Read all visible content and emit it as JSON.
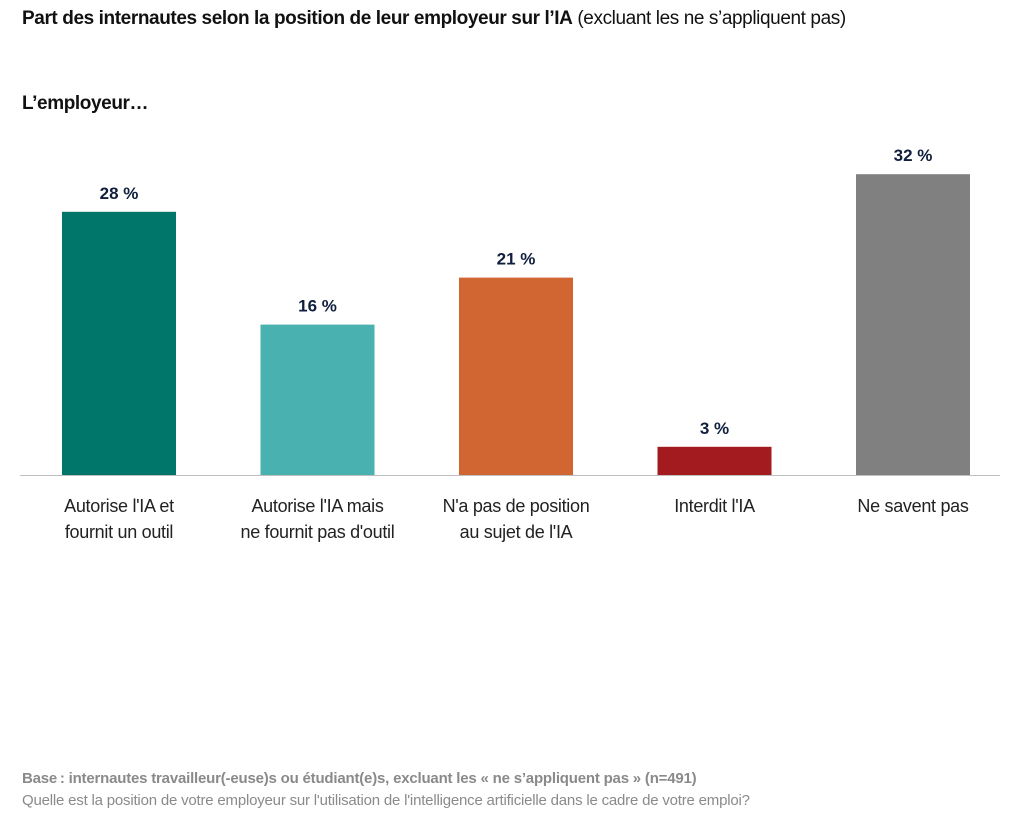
{
  "chart_data": {
    "type": "bar",
    "title": "Part des internautes selon la position de leur employeur sur l’IA",
    "title_note": "(excluant les ne s’appliquent pas)",
    "subtitle": "L’employeur…",
    "categories": [
      [
        "Autorise l'IA et",
        "fournit un outil"
      ],
      [
        "Autorise l'IA mais",
        "ne fournit pas d'outil"
      ],
      [
        "N'a pas de position",
        "au sujet de l'IA"
      ],
      [
        "Interdit l'IA"
      ],
      [
        "Ne savent pas"
      ]
    ],
    "values": [
      28,
      16,
      21,
      3,
      32
    ],
    "data_labels": [
      "28 %",
      "16 %",
      "21 %",
      "3 %",
      "32 %"
    ],
    "colors": [
      "#00766A",
      "#4AB1B1",
      "#D26633",
      "#A31A1F",
      "#808080"
    ],
    "label_color": "#0F1F3D",
    "xlabel": "",
    "ylabel": "",
    "ylim": [
      0,
      32
    ],
    "grid": false
  },
  "footer": {
    "base": "Base : internautes travailleur(-euse)s ou étudiant(e)s, excluant les « ne s’appliquent pas » (n=491)",
    "question": "Quelle est la position de votre employeur sur l'utilisation de l'intelligence artificielle dans le cadre de votre emploi?"
  }
}
